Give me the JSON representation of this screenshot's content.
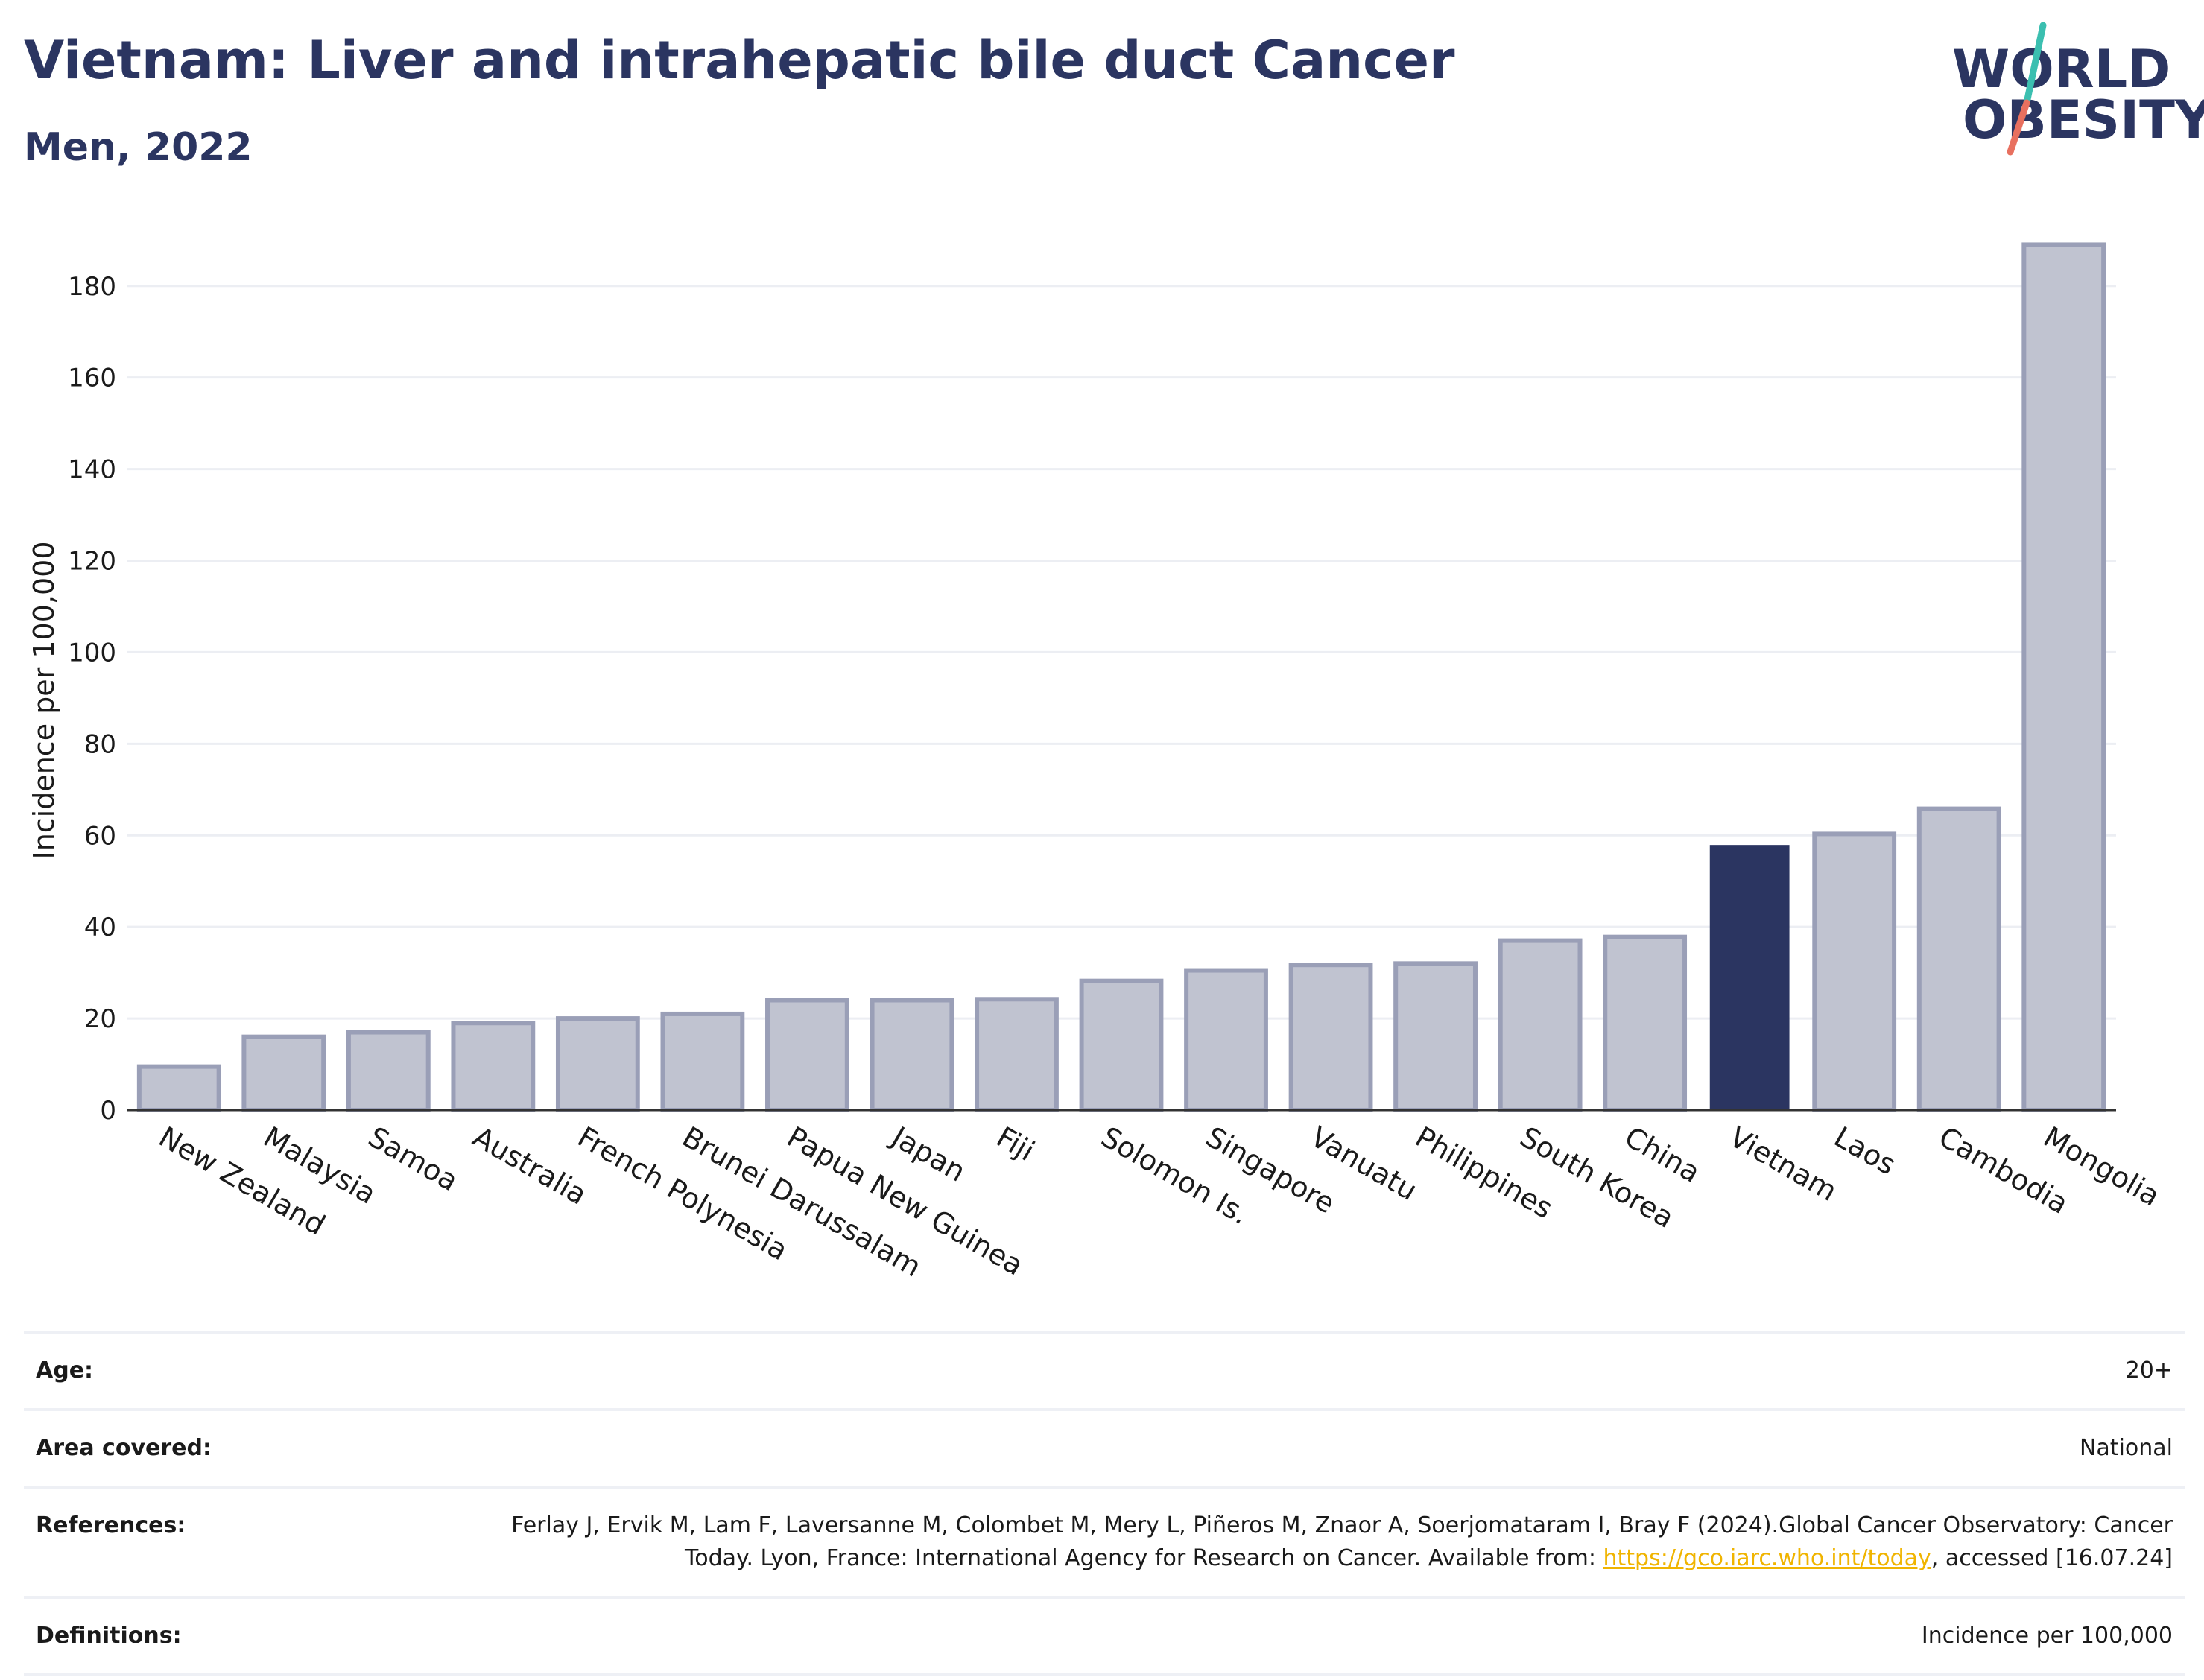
{
  "header": {
    "title": "Vietnam: Liver and intrahepatic bile duct Cancer",
    "subtitle": "Men, 2022"
  },
  "logo": {
    "line1": "WORLD",
    "line2": "OBESITY",
    "colors": {
      "text": "#2b3561",
      "slash_top": "#3bbfb0",
      "slash_bottom": "#e8705f"
    }
  },
  "colors": {
    "highlight": "#2b3561",
    "bar": "#c0c3d0",
    "bar_stroke": "#9a9fb7",
    "grid": "#eceef3"
  },
  "chart_data": {
    "type": "bar",
    "title": "",
    "xlabel": "",
    "ylabel": "Incidence per 100,000",
    "ylim": [
      0,
      192
    ],
    "yticks": [
      0,
      20,
      40,
      60,
      80,
      100,
      120,
      140,
      160,
      180
    ],
    "grid": true,
    "highlight": "Vietnam",
    "categories": [
      "New Zealand",
      "Malaysia",
      "Samoa",
      "Australia",
      "French Polynesia",
      "Brunei Darussalam",
      "Papua New Guinea",
      "Japan",
      "Fiji",
      "Solomon Is.",
      "Singapore",
      "Vanuatu",
      "Philippines",
      "South Korea",
      "China",
      "Vietnam",
      "Laos",
      "Cambodia",
      "Mongolia"
    ],
    "values": [
      9.5,
      16,
      17,
      19,
      20,
      21,
      24,
      24,
      24.2,
      28.2,
      30.5,
      31.7,
      32,
      37,
      37.8,
      57.9,
      60.3,
      65.8,
      189
    ]
  },
  "info": {
    "age": {
      "label": "Age:",
      "value": "20+"
    },
    "area": {
      "label": "Area covered:",
      "value": "National"
    },
    "references": {
      "label": "References:",
      "text_before": "Ferlay J, Ervik M, Lam F, Laversanne M, Colombet M, Mery L, Piñeros M, Znaor A, Soerjomataram I, Bray F (2024).Global Cancer Observatory: Cancer Today. Lyon, France: International Agency for Research on Cancer. Available from: ",
      "link": "https://gco.iarc.who.int/today",
      "text_after": ", accessed [16.07.24]"
    },
    "definitions": {
      "label": "Definitions:",
      "value": "Incidence per 100,000"
    }
  }
}
